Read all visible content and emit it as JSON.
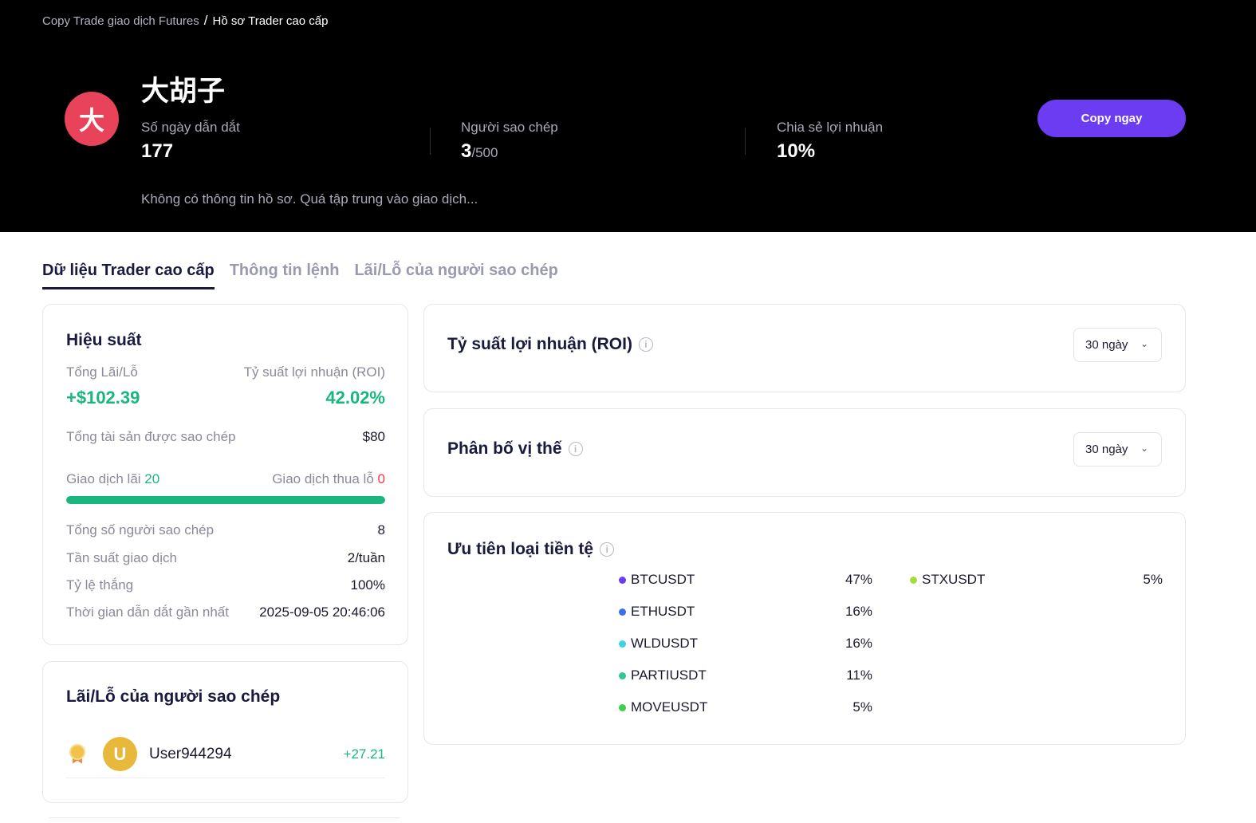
{
  "breadcrumb": {
    "parent": "Copy Trade giao dịch Futures",
    "separator": "/",
    "current": "Hồ sơ Trader cao cấp"
  },
  "trader": {
    "avatar_letter": "大",
    "avatar_color": "#e8435a",
    "name": "大胡子",
    "bio": "Không có thông tin hồ sơ. Quá tập trung vào giao dịch..."
  },
  "stats": {
    "lead_days_label": "Số ngày dẫn dắt",
    "lead_days_value": "177",
    "copiers_label": "Người sao chép",
    "copiers_value": "3",
    "copiers_max": "/500",
    "profit_share_label": "Chia sẻ lợi nhuận",
    "profit_share_value": "10%"
  },
  "copy_button": "Copy ngay",
  "tabs": [
    {
      "label": "Dữ liệu Trader cao cấp",
      "active": true
    },
    {
      "label": "Thông tin lệnh",
      "active": false
    },
    {
      "label": "Lãi/Lỗ của người sao chép",
      "active": false
    }
  ],
  "performance": {
    "title": "Hiệu suất",
    "total_pnl_label": "Tổng Lãi/Lỗ",
    "total_pnl_value": "+$102.39",
    "roi_label": "Tỷ suất lợi nhuận (ROI)",
    "roi_value": "42.02%",
    "copied_assets_label": "Tổng tài sản được sao chép",
    "copied_assets_value": "$80",
    "win_trades_label": "Giao dịch lãi",
    "win_trades_value": "20",
    "loss_trades_label": "Giao dịch thua lỗ",
    "loss_trades_value": "0",
    "win_fraction": 1.0,
    "total_copiers_label": "Tổng số người sao chép",
    "total_copiers_value": "8",
    "frequency_label": "Tần suất giao dịch",
    "frequency_value": "2/tuần",
    "win_rate_label": "Tỷ lệ thắng",
    "win_rate_value": "100%",
    "last_lead_label": "Thời gian dẫn dắt gần nhất",
    "last_lead_value": "2025-09-05 20:46:06"
  },
  "copier_pnl": {
    "title": "Lãi/Lỗ của người sao chép",
    "rows": [
      {
        "avatar_letter": "U",
        "name": "User944294",
        "pnl": "+27.21",
        "medal_icon": "medal-icon"
      }
    ]
  },
  "roi_card": {
    "title": "Tỷ suất lợi nhuận (ROI)",
    "period": "30 ngày",
    "info_icon": "info-icon"
  },
  "position_card": {
    "title": "Phân bố vị thế",
    "period": "30 ngày",
    "info_icon": "info-icon"
  },
  "currency_card": {
    "title": "Ưu tiên loại tiền tệ",
    "info_icon": "info-icon",
    "coins": [
      {
        "name": "BTCUSDT",
        "pct": "47%",
        "color": "#6b3cf2"
      },
      {
        "name": "ETHUSDT",
        "pct": "16%",
        "color": "#3a6ff2"
      },
      {
        "name": "WLDUSDT",
        "pct": "16%",
        "color": "#3fd2e6"
      },
      {
        "name": "PARTIUSDT",
        "pct": "11%",
        "color": "#2fc79a"
      },
      {
        "name": "MOVEUSDT",
        "pct": "5%",
        "color": "#3ed04a"
      },
      {
        "name": "STXUSDT",
        "pct": "5%",
        "color": "#a4dc3c"
      }
    ]
  }
}
